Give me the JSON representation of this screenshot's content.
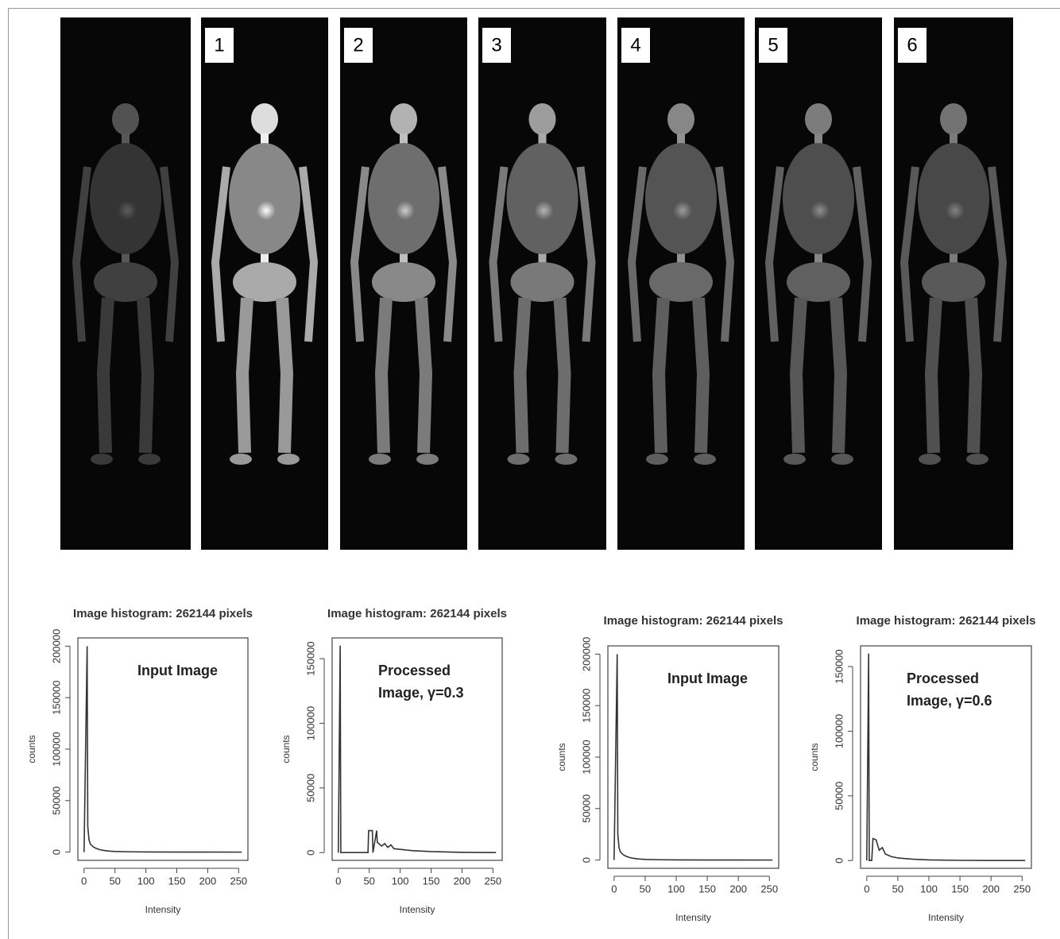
{
  "panel_labels": [
    "1",
    "2",
    "3",
    "4",
    "5",
    "6"
  ],
  "chart_data": [
    {
      "type": "line",
      "title": "Image histogram: 262144 pixels",
      "annotation": [
        "Input Image"
      ],
      "xlabel": "Intensity",
      "ylabel": "counts",
      "color": "#333333",
      "x": [
        0,
        5,
        6,
        8,
        10,
        15,
        20,
        25,
        30,
        40,
        50,
        75,
        100,
        150,
        200,
        255
      ],
      "values": [
        0,
        200000,
        25000,
        12000,
        8000,
        5000,
        3500,
        2500,
        1800,
        1000,
        600,
        300,
        150,
        50,
        20,
        0
      ],
      "xlim": [
        -10,
        265
      ],
      "xticks": [
        0,
        50,
        100,
        150,
        200,
        250
      ],
      "ylim": [
        -8000,
        208000
      ],
      "yticks": [
        0,
        50000,
        100000,
        150000,
        200000
      ]
    },
    {
      "type": "line",
      "title": "Image histogram: 262144 pixels",
      "annotation": [
        "Processed",
        "Image, γ=0.3"
      ],
      "xlabel": "Intensity",
      "ylabel": "counts",
      "color": "#333333",
      "x": [
        0,
        3,
        4,
        48,
        49,
        55,
        56,
        62,
        63,
        70,
        75,
        80,
        85,
        90,
        100,
        120,
        150,
        200,
        255
      ],
      "values": [
        0,
        160000,
        0,
        0,
        17000,
        17000,
        0,
        17000,
        8000,
        5000,
        7000,
        4000,
        6000,
        3000,
        2500,
        1500,
        800,
        200,
        0
      ],
      "xlim": [
        -10,
        265
      ],
      "xticks": [
        0,
        50,
        100,
        150,
        200,
        250
      ],
      "ylim": [
        -6000,
        166000
      ],
      "yticks": [
        0,
        50000,
        100000,
        150000
      ]
    },
    {
      "type": "line",
      "title": "Image histogram: 262144 pixels",
      "annotation": [
        "Input Image"
      ],
      "xlabel": "Intensity",
      "ylabel": "counts",
      "color": "#333333",
      "x": [
        0,
        5,
        6,
        8,
        10,
        15,
        20,
        25,
        30,
        40,
        50,
        75,
        100,
        150,
        200,
        255
      ],
      "values": [
        0,
        200000,
        25000,
        12000,
        8000,
        5000,
        3500,
        2500,
        1800,
        1000,
        600,
        300,
        150,
        50,
        20,
        0
      ],
      "xlim": [
        -10,
        265
      ],
      "xticks": [
        0,
        50,
        100,
        150,
        200,
        250
      ],
      "ylim": [
        -8000,
        208000
      ],
      "yticks": [
        0,
        50000,
        100000,
        150000,
        200000
      ]
    },
    {
      "type": "line",
      "title": "Image histogram: 262144 pixels",
      "annotation": [
        "Processed",
        "Image, γ=0.6"
      ],
      "xlabel": "Intensity",
      "ylabel": "counts",
      "color": "#333333",
      "x": [
        0,
        3,
        4,
        8,
        10,
        15,
        20,
        25,
        30,
        35,
        40,
        50,
        75,
        100,
        150,
        200,
        255
      ],
      "values": [
        0,
        160000,
        0,
        0,
        17000,
        16000,
        8000,
        10000,
        5000,
        4000,
        3000,
        2000,
        1000,
        500,
        150,
        50,
        0
      ],
      "xlim": [
        -10,
        265
      ],
      "xticks": [
        0,
        50,
        100,
        150,
        200,
        250
      ],
      "ylim": [
        -6000,
        166000
      ],
      "yticks": [
        0,
        50000,
        100000,
        150000
      ]
    }
  ]
}
